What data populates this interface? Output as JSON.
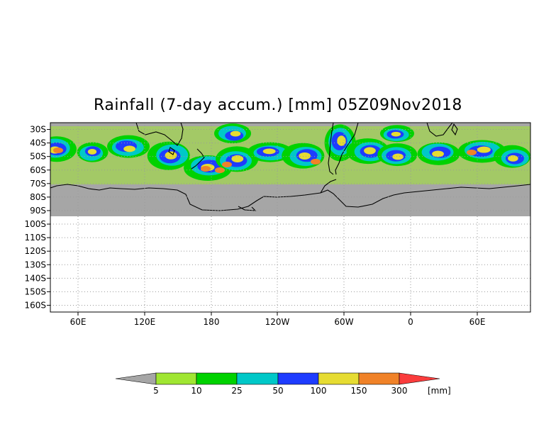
{
  "title": "Rainfall (7-day accum.) [mm] 05Z09Nov2018",
  "latitude_labels": [
    "30S",
    "40S",
    "50S",
    "60S",
    "70S",
    "80S",
    "90S",
    "100S",
    "110S",
    "120S",
    "130S",
    "140S",
    "150S",
    "160S"
  ],
  "longitude_labels": [
    "60E",
    "120E",
    "180",
    "120W",
    "60W",
    "0",
    "60E"
  ],
  "colorbar": {
    "unit": "[mm]",
    "thresholds": [
      "5",
      "10",
      "25",
      "50",
      "100",
      "150",
      "300"
    ],
    "colors": [
      "#a6a6a6",
      "#a0e632",
      "#00d200",
      "#00c8c8",
      "#1e3cff",
      "#e6dc32",
      "#f08228",
      "#fa3c3c"
    ]
  },
  "map_colors": {
    "no_rain": "#a6a6a6",
    "background": "#ffffff",
    "grid": "#9a9a9a",
    "coastline": "#000000"
  }
}
